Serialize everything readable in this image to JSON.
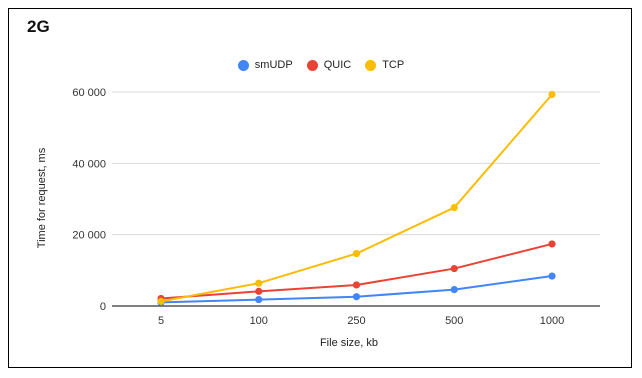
{
  "chart_data": {
    "type": "line",
    "title": "2G",
    "xlabel": "File size, kb",
    "ylabel": "Time for request, ms",
    "categories": [
      "5",
      "100",
      "250",
      "500",
      "1000"
    ],
    "ylim": [
      0,
      60000
    ],
    "yticks": [
      0,
      20000,
      40000,
      60000
    ],
    "ytick_labels": [
      "0",
      "20 000",
      "40 000",
      "60 000"
    ],
    "grid": true,
    "legend_position": "top",
    "series": [
      {
        "name": "smUDP",
        "color": "#4285F4",
        "values": [
          1000,
          1800,
          2600,
          4600,
          8400
        ]
      },
      {
        "name": "QUIC",
        "color": "#EA4335",
        "values": [
          2100,
          4100,
          5900,
          10500,
          17400
        ]
      },
      {
        "name": "TCP",
        "color": "#FBBC04",
        "values": [
          1300,
          6400,
          14700,
          27600,
          59300
        ]
      }
    ]
  }
}
